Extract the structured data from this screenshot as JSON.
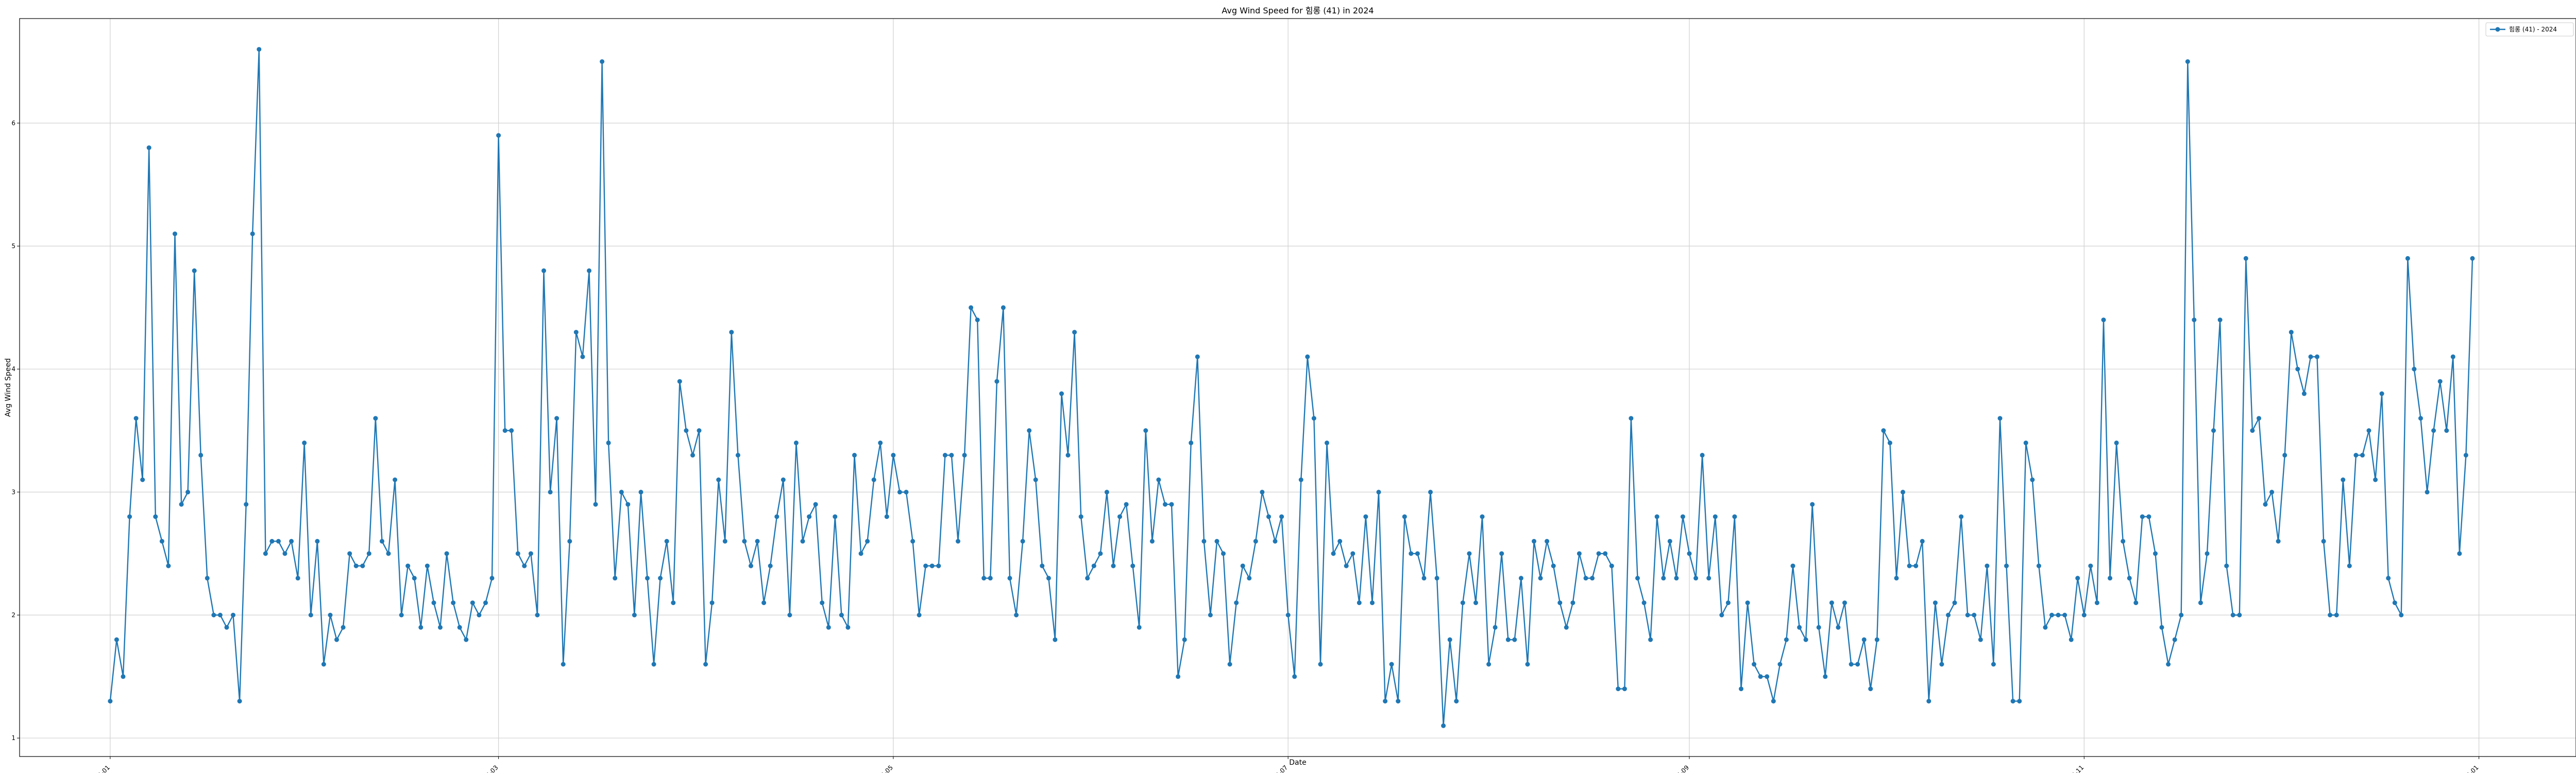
{
  "chart_data": {
    "type": "line",
    "title": "Avg Wind Speed for 힘롱 (41) in 2024",
    "xlabel": "Date",
    "ylabel": "Avg Wind Speed",
    "xlim": [
      "2023-12-18",
      "2025-01-16"
    ],
    "ylim": [
      0.85,
      6.85
    ],
    "grid": true,
    "legend_position": "top-right",
    "y_ticks": [
      "1",
      "2",
      "3",
      "4",
      "5",
      "6"
    ],
    "x_ticks": [
      "2024-01",
      "2024-03",
      "2024-05",
      "2024-07",
      "2024-09",
      "2024-11",
      "2025-01"
    ],
    "line_color": "#1f77b4",
    "series": [
      {
        "name": "힘롱 (41) - 2024",
        "start_date": "2024-01-01",
        "values": [
          1.3,
          1.8,
          1.5,
          2.8,
          3.6,
          3.1,
          5.8,
          2.8,
          2.6,
          2.4,
          5.1,
          2.9,
          3.0,
          4.8,
          3.3,
          2.3,
          2.0,
          2.0,
          1.9,
          2.0,
          1.3,
          2.9,
          5.1,
          6.6,
          2.5,
          2.6,
          2.6,
          2.5,
          2.6,
          2.3,
          3.4,
          2.0,
          2.6,
          1.6,
          2.0,
          1.8,
          1.9,
          2.5,
          2.4,
          2.4,
          2.5,
          3.6,
          2.6,
          2.5,
          3.1,
          2.0,
          2.4,
          2.3,
          1.9,
          2.4,
          2.1,
          1.9,
          2.5,
          2.1,
          1.9,
          1.8,
          2.1,
          2.0,
          2.1,
          2.3,
          5.9,
          3.5,
          3.5,
          2.5,
          2.4,
          2.5,
          2.0,
          4.8,
          3.0,
          3.6,
          1.6,
          2.6,
          4.3,
          4.1,
          4.8,
          2.9,
          6.5,
          3.4,
          2.3,
          3.0,
          2.9,
          2.0,
          3.0,
          2.3,
          1.6,
          2.3,
          2.6,
          2.1,
          3.9,
          3.5,
          3.3,
          3.5,
          1.6,
          2.1,
          3.1,
          2.6,
          4.3,
          3.3,
          2.6,
          2.4,
          2.6,
          2.1,
          2.4,
          2.8,
          3.1,
          2.0,
          3.4,
          2.6,
          2.8,
          2.9,
          2.1,
          1.9,
          2.8,
          2.0,
          1.9,
          3.3,
          2.5,
          2.6,
          3.1,
          3.4,
          2.8,
          3.3,
          3.0,
          3.0,
          2.6,
          2.0,
          2.4,
          2.4,
          2.4,
          3.3,
          3.3,
          2.6,
          3.3,
          4.5,
          4.4,
          2.3,
          2.3,
          3.9,
          4.5,
          2.3,
          2.0,
          2.6,
          3.5,
          3.1,
          2.4,
          2.3,
          1.8,
          3.8,
          3.3,
          4.3,
          2.8,
          2.3,
          2.4,
          2.5,
          3.0,
          2.4,
          2.8,
          2.9,
          2.4,
          1.9,
          3.5,
          2.6,
          3.1,
          2.9,
          2.9,
          1.5,
          1.8,
          3.4,
          4.1,
          2.6,
          2.0,
          2.6,
          2.5,
          1.6,
          2.1,
          2.4,
          2.3,
          2.6,
          3.0,
          2.8,
          2.6,
          2.8,
          2.0,
          1.5,
          3.1,
          4.1,
          3.6,
          1.6,
          3.4,
          2.5,
          2.6,
          2.4,
          2.5,
          2.1,
          2.8,
          2.1,
          3.0,
          1.3,
          1.6,
          1.3,
          2.8,
          2.5,
          2.5,
          2.3,
          3.0,
          2.3,
          1.1,
          1.8,
          1.3,
          2.1,
          2.5,
          2.1,
          2.8,
          1.6,
          1.9,
          2.5,
          1.8,
          1.8,
          2.3,
          1.6,
          2.6,
          2.3,
          2.6,
          2.4,
          2.1,
          1.9,
          2.1,
          2.5,
          2.3,
          2.3,
          2.5,
          2.5,
          2.4,
          1.4,
          1.4,
          3.6,
          2.3,
          2.1,
          1.8,
          2.8,
          2.3,
          2.6,
          2.3,
          2.8,
          2.5,
          2.3,
          3.3,
          2.3,
          2.8,
          2.0,
          2.1,
          2.8,
          1.4,
          2.1,
          1.6,
          1.5,
          1.5,
          1.3,
          1.6,
          1.8,
          2.4,
          1.9,
          1.8,
          2.9,
          1.9,
          1.5,
          2.1,
          1.9,
          2.1,
          1.6,
          1.6,
          1.8,
          1.4,
          1.8,
          3.5,
          3.4,
          2.3,
          3.0,
          2.4,
          2.4,
          2.6,
          1.3,
          2.1,
          1.6,
          2.0,
          2.1,
          2.8,
          2.0,
          2.0,
          1.8,
          2.4,
          1.6,
          3.6,
          2.4,
          1.3,
          1.3,
          3.4,
          3.1,
          2.4,
          1.9,
          2.0,
          2.0,
          2.0,
          1.8,
          2.3,
          2.0,
          2.4,
          2.1,
          4.4,
          2.3,
          3.4,
          2.6,
          2.3,
          2.1,
          2.8,
          2.8,
          2.5,
          1.9,
          1.6,
          1.8,
          2.0,
          6.5,
          4.4,
          2.1,
          2.5,
          3.5,
          4.4,
          2.4,
          2.0,
          2.0,
          4.9,
          3.5,
          3.6,
          2.9,
          3.0,
          2.6,
          3.3,
          4.3,
          4.0,
          3.8,
          4.1,
          4.1,
          2.6,
          2.0,
          2.0,
          3.1,
          2.4,
          3.3,
          3.3,
          3.5,
          3.1,
          3.8,
          2.3,
          2.1,
          2.0,
          4.9,
          4.0,
          3.6,
          3.0,
          3.5,
          3.9,
          3.5,
          4.1,
          2.5,
          3.3,
          4.9
        ]
      }
    ]
  }
}
